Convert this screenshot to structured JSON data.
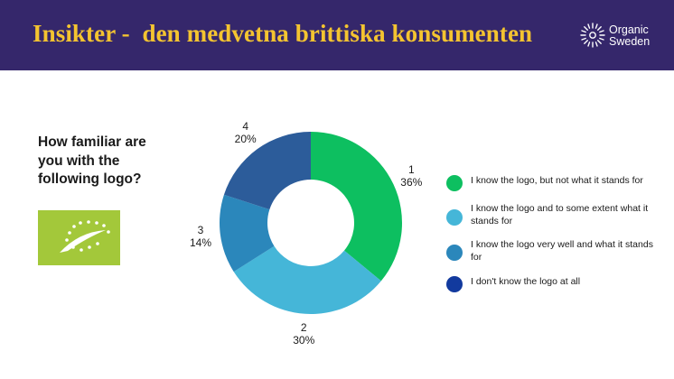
{
  "header": {
    "title": "Insikter -  den medvetna brittiska konsumenten",
    "brand": "Organic Sweden"
  },
  "question": "How familiar are you with the following logo?",
  "legend": [
    {
      "label": "I know the logo, but not what it stands for",
      "color": "#0dbf60"
    },
    {
      "label": "I know the logo and to some extent what it stands for",
      "color": "#45b6d8"
    },
    {
      "label": "I know the logo very well and what it stands for",
      "color": "#2b87bb"
    },
    {
      "label": "I don't know the logo at all",
      "color": "#123a9e"
    }
  ],
  "chart_data": {
    "type": "pie",
    "donut": true,
    "slices": [
      {
        "label": "1",
        "value": 36,
        "value_label": "36%",
        "color": "#0dbf60"
      },
      {
        "label": "2",
        "value": 30,
        "value_label": "30%",
        "color": "#45b6d8"
      },
      {
        "label": "3",
        "value": 14,
        "value_label": "14%",
        "color": "#2b87bb"
      },
      {
        "label": "4",
        "value": 20,
        "value_label": "20%",
        "color": "#2c5c9a"
      }
    ],
    "start_angle": "top",
    "direction": "clockwise"
  }
}
